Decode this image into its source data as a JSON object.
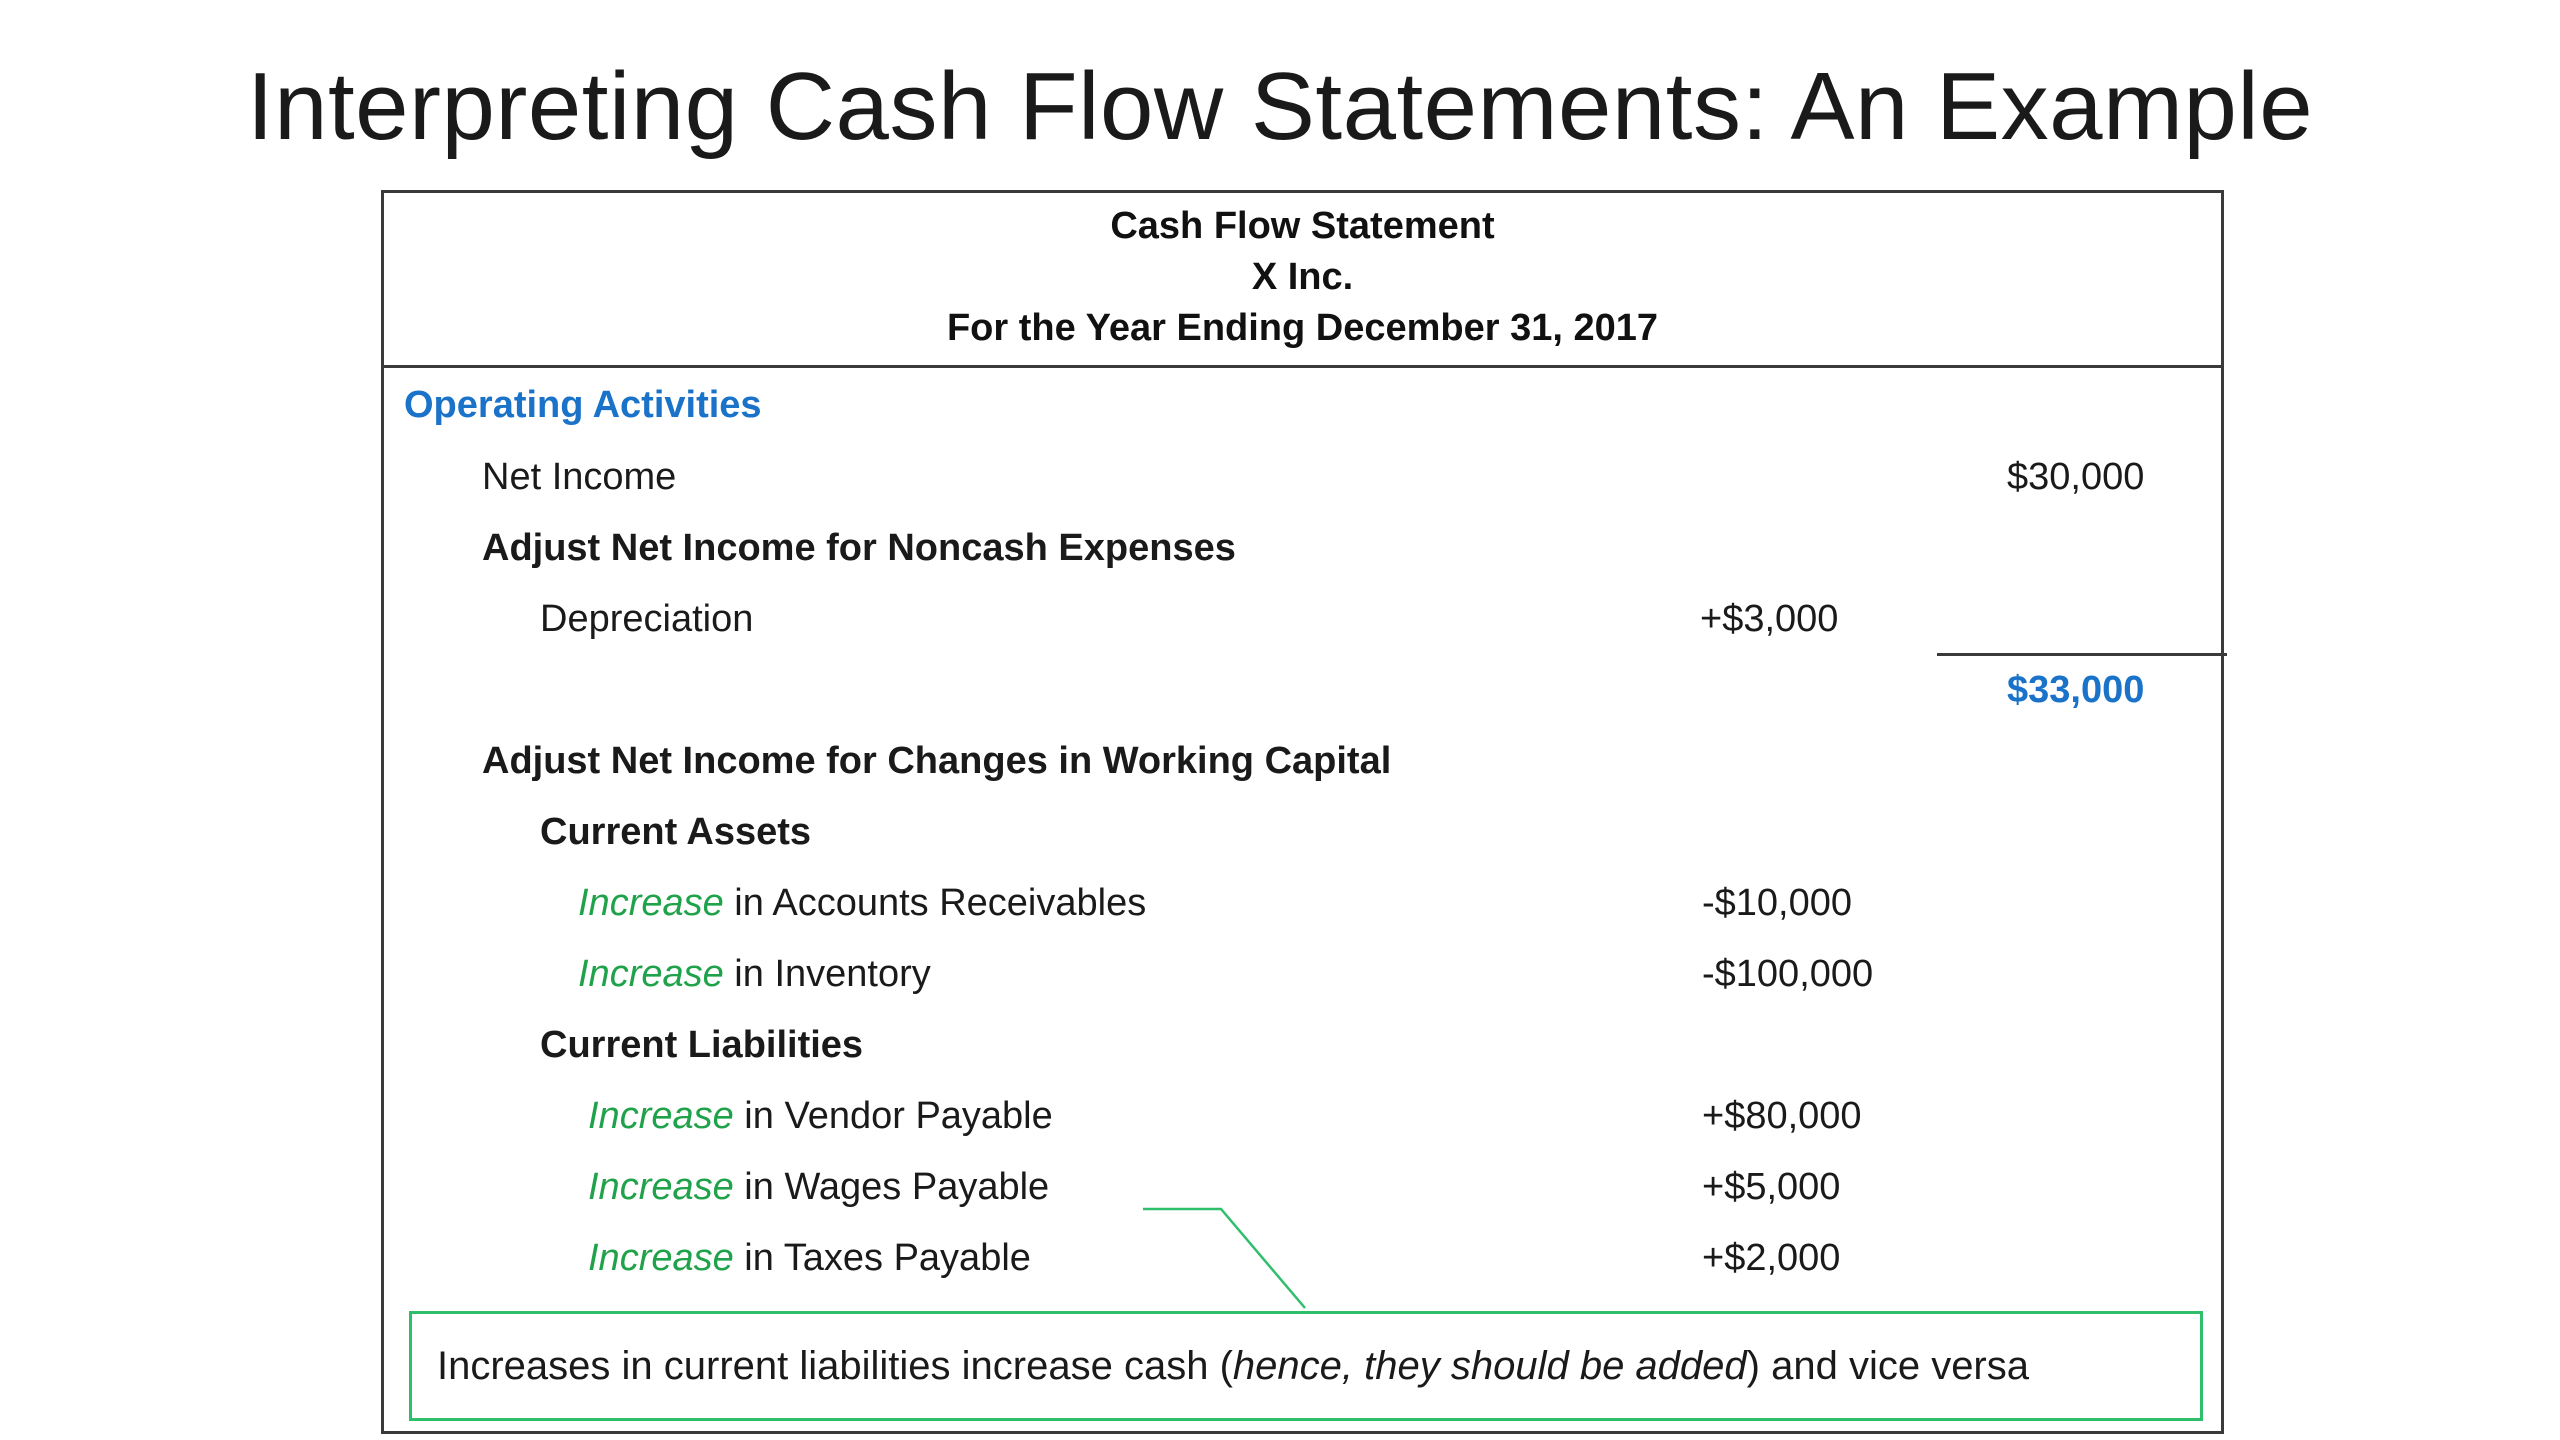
{
  "slide": {
    "title": "Interpreting Cash Flow Statements: An Example"
  },
  "statement": {
    "header": {
      "line1": "Cash Flow Statement",
      "line2": "X Inc.",
      "line3": "For the Year Ending December 31, 2017"
    },
    "operating_activities": "Operating Activities",
    "net_income": {
      "label": "Net Income",
      "amount": "$30,000"
    },
    "noncash_heading": "Adjust Net Income for Noncash Expenses",
    "depreciation": {
      "label": "Depreciation",
      "amount": "+$3,000"
    },
    "subtotal": "$33,000",
    "working_capital_heading": "Adjust Net Income for Changes in Working Capital",
    "current_assets": {
      "heading": "Current Assets",
      "items": [
        {
          "prefix": "Increase",
          "label": " in Accounts Receivables",
          "amount": "-$10,000"
        },
        {
          "prefix": "Increase",
          "label": " in Inventory",
          "amount": "-$100,000"
        }
      ]
    },
    "current_liabilities": {
      "heading": "Current Liabilities",
      "items": [
        {
          "prefix": "Increase",
          "label": " in Vendor Payable",
          "amount": "+$80,000"
        },
        {
          "prefix": "Increase",
          "label": " in Wages Payable",
          "amount": "+$5,000"
        },
        {
          "prefix": "Increase",
          "label": " in Taxes Payable",
          "amount": "+$2,000"
        }
      ]
    },
    "callout": {
      "text_before": "Increases in current liabilities increase cash (",
      "text_italic": "hence, they should be added",
      "text_after": ") and vice versa"
    }
  },
  "colors": {
    "accent_blue": "#1a73c9",
    "increase_green": "#1fa24a",
    "callout_border": "#2fbf6b"
  }
}
